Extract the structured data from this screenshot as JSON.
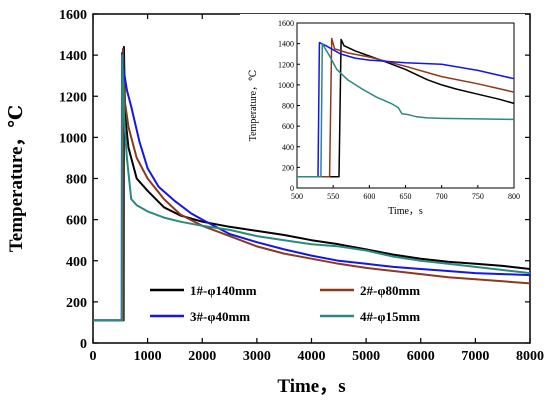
{
  "chart_data": [
    {
      "id": "main",
      "type": "line",
      "xlabel": "Time，s",
      "ylabel": "Temperature，℃",
      "xlim": [
        0,
        8000
      ],
      "ylim": [
        0,
        1600
      ],
      "xticks": [
        0,
        1000,
        2000,
        3000,
        4000,
        5000,
        6000,
        7000,
        8000
      ],
      "yticks": [
        0,
        200,
        400,
        600,
        800,
        1000,
        1200,
        1400,
        1600
      ],
      "grid": false,
      "legend_position": "bottom",
      "series": [
        {
          "name": "1#-φ140mm",
          "color": "#000000",
          "points": [
            [
              0,
              110
            ],
            [
              480,
              110
            ],
            [
              560,
              110
            ],
            [
              565,
              1440
            ],
            [
              590,
              1100
            ],
            [
              650,
              950
            ],
            [
              800,
              800
            ],
            [
              1000,
              740
            ],
            [
              1300,
              660
            ],
            [
              1600,
              620
            ],
            [
              2000,
              590
            ],
            [
              2500,
              565
            ],
            [
              3000,
              545
            ],
            [
              3500,
              525
            ],
            [
              4000,
              500
            ],
            [
              4500,
              480
            ],
            [
              5000,
              455
            ],
            [
              5500,
              430
            ],
            [
              6000,
              410
            ],
            [
              6500,
              395
            ],
            [
              7000,
              385
            ],
            [
              7500,
              375
            ],
            [
              8000,
              360
            ]
          ]
        },
        {
          "name": "2#-φ80mm",
          "color": "#8b3a1e",
          "points": [
            [
              0,
              110
            ],
            [
              480,
              110
            ],
            [
              545,
              110
            ],
            [
              548,
              1430
            ],
            [
              580,
              1180
            ],
            [
              650,
              1050
            ],
            [
              800,
              900
            ],
            [
              1000,
              800
            ],
            [
              1300,
              700
            ],
            [
              1600,
              625
            ],
            [
              2000,
              570
            ],
            [
              2500,
              520
            ],
            [
              3000,
              470
            ],
            [
              3500,
              435
            ],
            [
              4000,
              410
            ],
            [
              4500,
              385
            ],
            [
              5000,
              365
            ],
            [
              5500,
              350
            ],
            [
              6000,
              335
            ],
            [
              6500,
              320
            ],
            [
              7000,
              310
            ],
            [
              7500,
              300
            ],
            [
              8000,
              290
            ]
          ]
        },
        {
          "name": "3#-φ40mm",
          "color": "#1515e6",
          "points": [
            [
              0,
              110
            ],
            [
              480,
              110
            ],
            [
              525,
              110
            ],
            [
              530,
              1410
            ],
            [
              560,
              1330
            ],
            [
              620,
              1230
            ],
            [
              700,
              1150
            ],
            [
              850,
              980
            ],
            [
              1000,
              850
            ],
            [
              1200,
              760
            ],
            [
              1500,
              690
            ],
            [
              1800,
              630
            ],
            [
              2000,
              600
            ],
            [
              2500,
              530
            ],
            [
              3000,
              490
            ],
            [
              3500,
              455
            ],
            [
              4000,
              425
            ],
            [
              4500,
              400
            ],
            [
              5000,
              385
            ],
            [
              5500,
              370
            ],
            [
              6000,
              360
            ],
            [
              6500,
              350
            ],
            [
              7000,
              340
            ],
            [
              7500,
              335
            ],
            [
              8000,
              330
            ]
          ]
        },
        {
          "name": "4#-φ15mm",
          "color": "#2a8a80",
          "points": [
            [
              0,
              110
            ],
            [
              480,
              110
            ],
            [
              530,
              110
            ],
            [
              535,
              1400
            ],
            [
              570,
              1100
            ],
            [
              620,
              900
            ],
            [
              700,
              700
            ],
            [
              800,
              670
            ],
            [
              1000,
              640
            ],
            [
              1300,
              610
            ],
            [
              1600,
              590
            ],
            [
              2000,
              570
            ],
            [
              2500,
              550
            ],
            [
              3000,
              520
            ],
            [
              3500,
              500
            ],
            [
              4000,
              480
            ],
            [
              4500,
              470
            ],
            [
              5000,
              450
            ],
            [
              5500,
              420
            ],
            [
              6000,
              400
            ],
            [
              6500,
              385
            ],
            [
              7000,
              370
            ],
            [
              7500,
              355
            ],
            [
              8000,
              340
            ]
          ]
        }
      ]
    },
    {
      "id": "inset",
      "type": "line",
      "xlabel": "Time，s",
      "ylabel": "Temperature，℃",
      "xlim": [
        500,
        800
      ],
      "ylim": [
        0,
        1600
      ],
      "xticks": [
        500,
        550,
        600,
        650,
        700,
        750,
        800
      ],
      "yticks": [
        0,
        200,
        400,
        600,
        800,
        1000,
        1200,
        1400,
        1600
      ],
      "grid": false,
      "series": [
        {
          "name": "1#-φ140mm",
          "color": "#000000",
          "points": [
            [
              500,
              110
            ],
            [
              558,
              110
            ],
            [
              561,
              1440
            ],
            [
              565,
              1380
            ],
            [
              580,
              1330
            ],
            [
              600,
              1280
            ],
            [
              620,
              1230
            ],
            [
              650,
              1150
            ],
            [
              680,
              1050
            ],
            [
              700,
              1000
            ],
            [
              720,
              960
            ],
            [
              750,
              910
            ],
            [
              780,
              860
            ],
            [
              800,
              820
            ]
          ]
        },
        {
          "name": "2#-φ80mm",
          "color": "#8b3a1e",
          "points": [
            [
              500,
              110
            ],
            [
              545,
              110
            ],
            [
              548,
              1450
            ],
            [
              552,
              1350
            ],
            [
              570,
              1310
            ],
            [
              600,
              1270
            ],
            [
              650,
              1180
            ],
            [
              700,
              1080
            ],
            [
              750,
              1010
            ],
            [
              800,
              930
            ]
          ]
        },
        {
          "name": "3#-φ40mm",
          "color": "#1515e6",
          "points": [
            [
              500,
              110
            ],
            [
              529,
              110
            ],
            [
              531,
              1410
            ],
            [
              540,
              1380
            ],
            [
              560,
              1300
            ],
            [
              580,
              1260
            ],
            [
              600,
              1240
            ],
            [
              650,
              1215
            ],
            [
              700,
              1200
            ],
            [
              750,
              1140
            ],
            [
              800,
              1060
            ]
          ]
        },
        {
          "name": "4#-φ15mm",
          "color": "#2a8a80",
          "points": [
            [
              500,
              110
            ],
            [
              533,
              110
            ],
            [
              535,
              1400
            ],
            [
              545,
              1280
            ],
            [
              555,
              1150
            ],
            [
              570,
              1050
            ],
            [
              590,
              960
            ],
            [
              610,
              880
            ],
            [
              630,
              820
            ],
            [
              640,
              780
            ],
            [
              645,
              720
            ],
            [
              655,
              710
            ],
            [
              665,
              690
            ],
            [
              680,
              680
            ],
            [
              700,
              675
            ],
            [
              750,
              670
            ],
            [
              800,
              665
            ]
          ]
        }
      ]
    }
  ]
}
